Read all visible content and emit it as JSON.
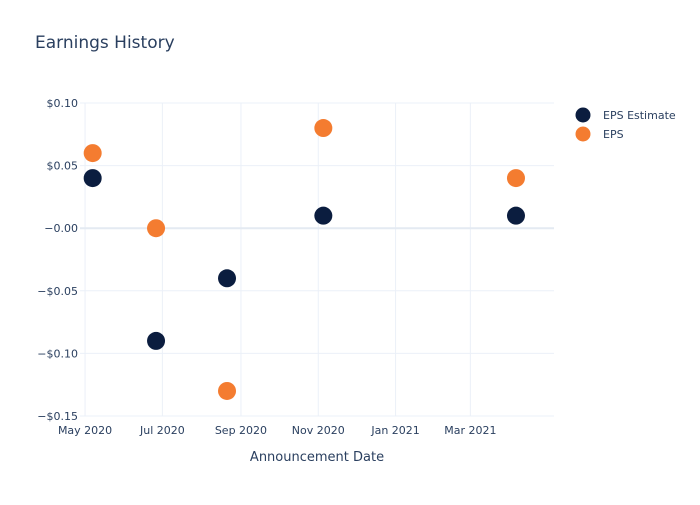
{
  "chart_data": {
    "type": "scatter",
    "title": "Earnings History",
    "xlabel": "Announcement Date",
    "ylabel": "",
    "x_ticks": [
      "2020-05-01",
      "2020-07-01",
      "2020-09-01",
      "2020-11-01",
      "2021-01-01",
      "2021-03-01"
    ],
    "x_tick_labels": [
      "May 2020",
      "Jul 2020",
      "Sep 2020",
      "Nov 2020",
      "Jan 2021",
      "Mar 2021"
    ],
    "xlim": [
      "2020-04-27",
      "2021-05-06"
    ],
    "y_ticks": [
      0.1,
      0.05,
      0.0,
      -0.05,
      -0.1,
      -0.15
    ],
    "y_tick_labels": [
      "$0.10",
      "$0.05",
      "−0.00",
      "−$0.05",
      "−$0.10",
      "−$0.15"
    ],
    "ylim": [
      -0.15,
      0.1
    ],
    "grid": true,
    "legend_position": "top-right",
    "series": [
      {
        "name": "EPS Estimate",
        "color": "#0b1d3f",
        "points": [
          {
            "x": "2020-05-07",
            "y": 0.04
          },
          {
            "x": "2020-06-26",
            "y": -0.09
          },
          {
            "x": "2020-08-21",
            "y": -0.04
          },
          {
            "x": "2020-11-05",
            "y": 0.01
          },
          {
            "x": "2021-04-06",
            "y": 0.01
          }
        ]
      },
      {
        "name": "EPS",
        "color": "#f47c30",
        "points": [
          {
            "x": "2020-05-07",
            "y": 0.06
          },
          {
            "x": "2020-06-26",
            "y": 0.0
          },
          {
            "x": "2020-08-21",
            "y": -0.13
          },
          {
            "x": "2020-11-05",
            "y": 0.08
          },
          {
            "x": "2021-04-06",
            "y": 0.04
          }
        ]
      }
    ]
  }
}
